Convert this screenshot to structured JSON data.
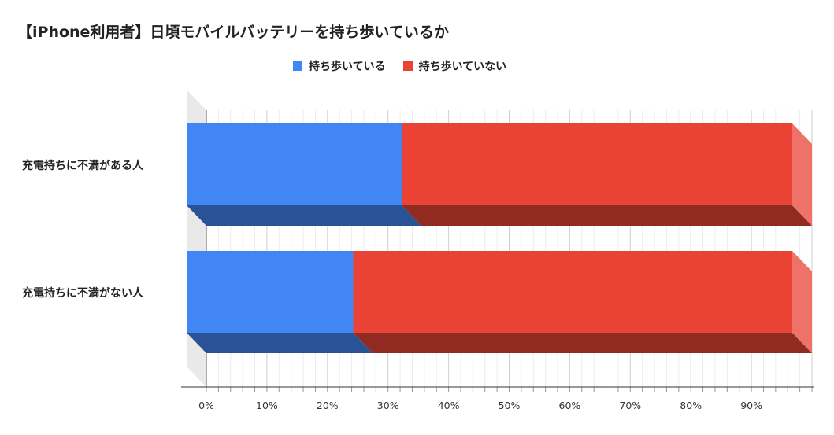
{
  "chart_data": {
    "type": "bar",
    "orientation": "horizontal",
    "stacked": true,
    "style": "3d",
    "title": "【iPhone利用者】日頃モバイルバッテリーを持ち歩いているか",
    "categories": [
      "充電持ちに不満がある人",
      "充電持ちに不満がない人"
    ],
    "series": [
      {
        "name": "持ち歩いている",
        "color": "#4285f4",
        "values": [
          35.5,
          27.5
        ]
      },
      {
        "name": "持ち歩いていない",
        "color": "#ea4335",
        "values": [
          64.5,
          72.5
        ]
      }
    ],
    "xlim": [
      0,
      100
    ],
    "ticks": [
      "0%",
      "10%",
      "20%",
      "30%",
      "40%",
      "50%",
      "60%",
      "70%",
      "80%",
      "90%"
    ],
    "grid": true,
    "legend_position": "top"
  }
}
